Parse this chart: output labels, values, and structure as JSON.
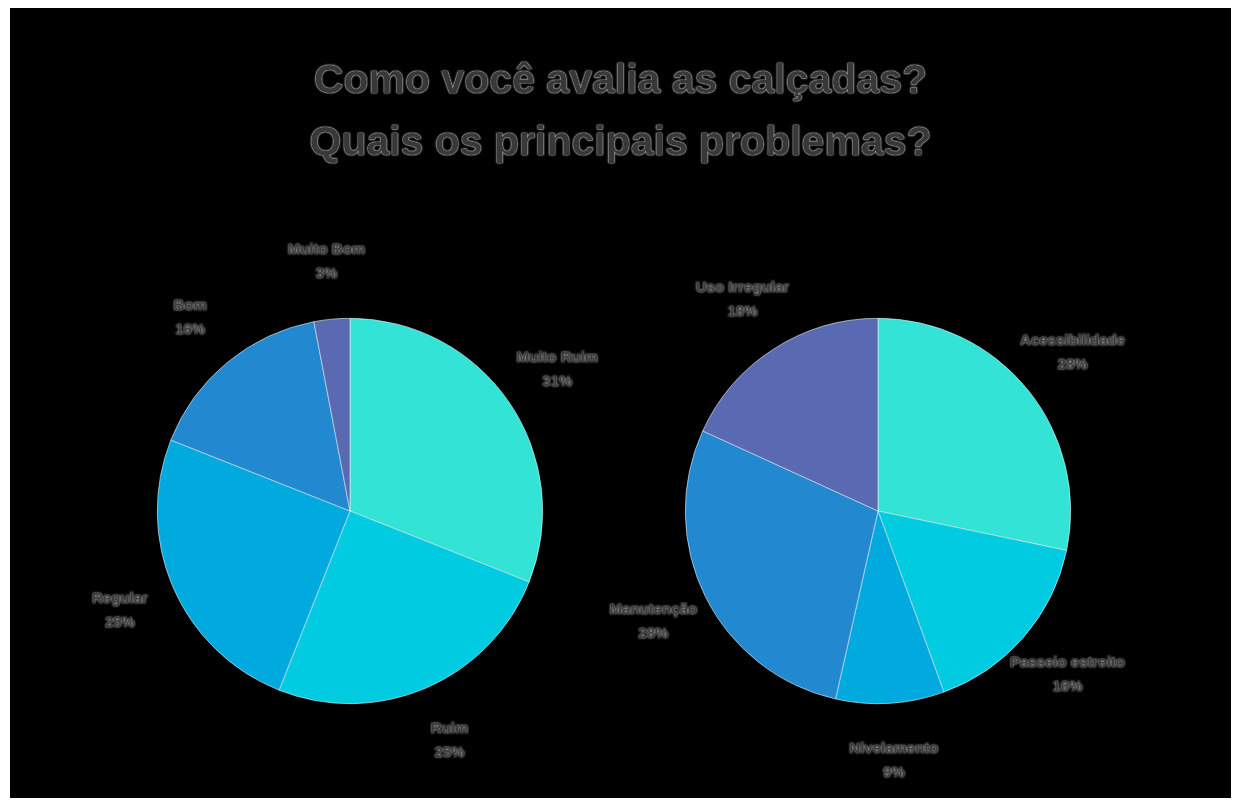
{
  "chart_data": [
    {
      "type": "pie",
      "title": "Como você avalia as calçadas?\nQuais os principais problemas?",
      "categories": [
        "Muito Ruim",
        "Ruim",
        "Regular",
        "Bom",
        "Muito Bom"
      ],
      "values": [
        31,
        25,
        25,
        16,
        3
      ],
      "value_labels": [
        "31%",
        "25%",
        "25%",
        "16%",
        "3%"
      ],
      "colors": [
        "#33e3d5",
        "#00cbe0",
        "#00aade",
        "#2288d0",
        "#5a6ab2"
      ],
      "legend": false
    },
    {
      "type": "pie",
      "categories": [
        "Acessibilidade",
        "Passeio estreito",
        "Nivelamento",
        "Manutenção",
        "Uso Irregular"
      ],
      "values": [
        28,
        16,
        9,
        28,
        18
      ],
      "value_labels": [
        "28%",
        "16%",
        "9%",
        "28%",
        "18%"
      ],
      "colors": [
        "#33e3d5",
        "#00cbe0",
        "#00aade",
        "#2288d0",
        "#5a6ab2"
      ],
      "legend": false
    }
  ]
}
